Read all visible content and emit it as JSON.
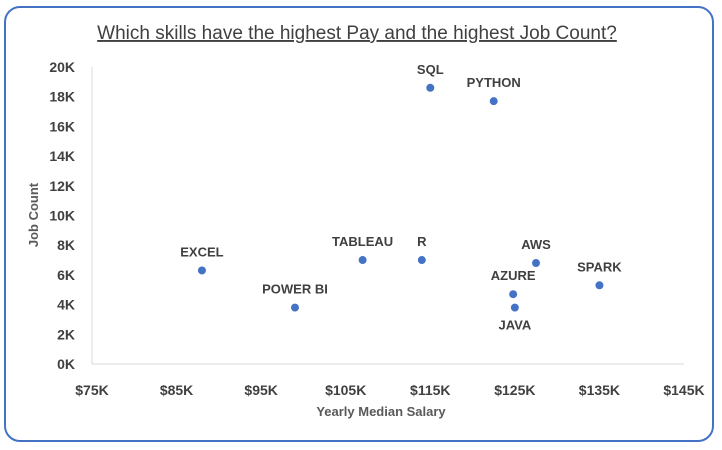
{
  "chart_data": {
    "type": "scatter",
    "title": "Which skills have the highest Pay and the highest Job Count?",
    "xlabel": "Yearly Median Salary",
    "ylabel": "Job Count",
    "xlim": [
      75000,
      145000
    ],
    "ylim": [
      0,
      20000
    ],
    "x_ticks": [
      75000,
      85000,
      95000,
      105000,
      115000,
      125000,
      135000,
      145000
    ],
    "x_tick_labels": [
      "$75K",
      "$85K",
      "$95K",
      "$105K",
      "$115K",
      "$125K",
      "$135K",
      "$145K"
    ],
    "y_ticks": [
      0,
      2000,
      4000,
      6000,
      8000,
      10000,
      12000,
      14000,
      16000,
      18000,
      20000
    ],
    "y_tick_labels": [
      "0K",
      "2K",
      "4K",
      "6K",
      "8K",
      "10K",
      "12K",
      "14K",
      "16K",
      "18K",
      "20K"
    ],
    "grid": false,
    "marker_color": "#4472c4",
    "points": [
      {
        "label": "SQL",
        "x": 115000,
        "y": 18600,
        "label_pos": "above"
      },
      {
        "label": "PYTHON",
        "x": 122500,
        "y": 17700,
        "label_pos": "above"
      },
      {
        "label": "EXCEL",
        "x": 88000,
        "y": 6300,
        "label_pos": "above"
      },
      {
        "label": "POWER BI",
        "x": 99000,
        "y": 3800,
        "label_pos": "above"
      },
      {
        "label": "TABLEAU",
        "x": 107000,
        "y": 7000,
        "label_pos": "above"
      },
      {
        "label": "R",
        "x": 114000,
        "y": 7000,
        "label_pos": "above"
      },
      {
        "label": "AWS",
        "x": 127500,
        "y": 6800,
        "label_pos": "above"
      },
      {
        "label": "AZURE",
        "x": 124800,
        "y": 4700,
        "label_pos": "above"
      },
      {
        "label": "JAVA",
        "x": 125000,
        "y": 3800,
        "label_pos": "below"
      },
      {
        "label": "SPARK",
        "x": 135000,
        "y": 5300,
        "label_pos": "above"
      }
    ]
  }
}
